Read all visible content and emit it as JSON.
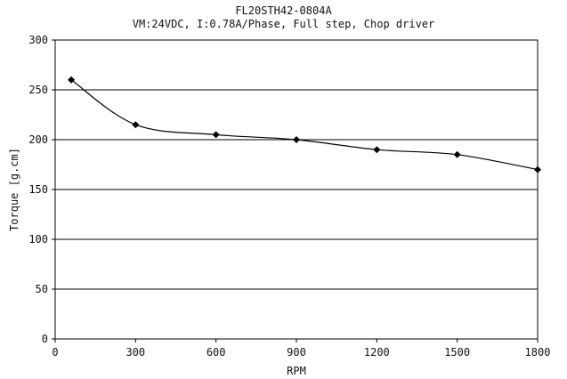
{
  "chart_data": {
    "type": "line",
    "title": "FL20STH42-0804A",
    "subtitle": "VM:24VDC, I:0.78A/Phase, Full step, Chop driver",
    "xlabel": "RPM",
    "ylabel": "Torque [g.cm]",
    "xlim": [
      0,
      1800
    ],
    "ylim": [
      0,
      300
    ],
    "xticks": [
      0,
      300,
      600,
      900,
      1200,
      1500,
      1800
    ],
    "yticks": [
      0,
      50,
      100,
      150,
      200,
      250,
      300
    ],
    "grid": "horizontal",
    "legend": "none",
    "series": [
      {
        "x": [
          60,
          300,
          600,
          900,
          1200,
          1500,
          1800
        ],
        "y": [
          260,
          215,
          205,
          200,
          190,
          185,
          170
        ],
        "color": "#000000",
        "marker": "diamond"
      }
    ]
  }
}
